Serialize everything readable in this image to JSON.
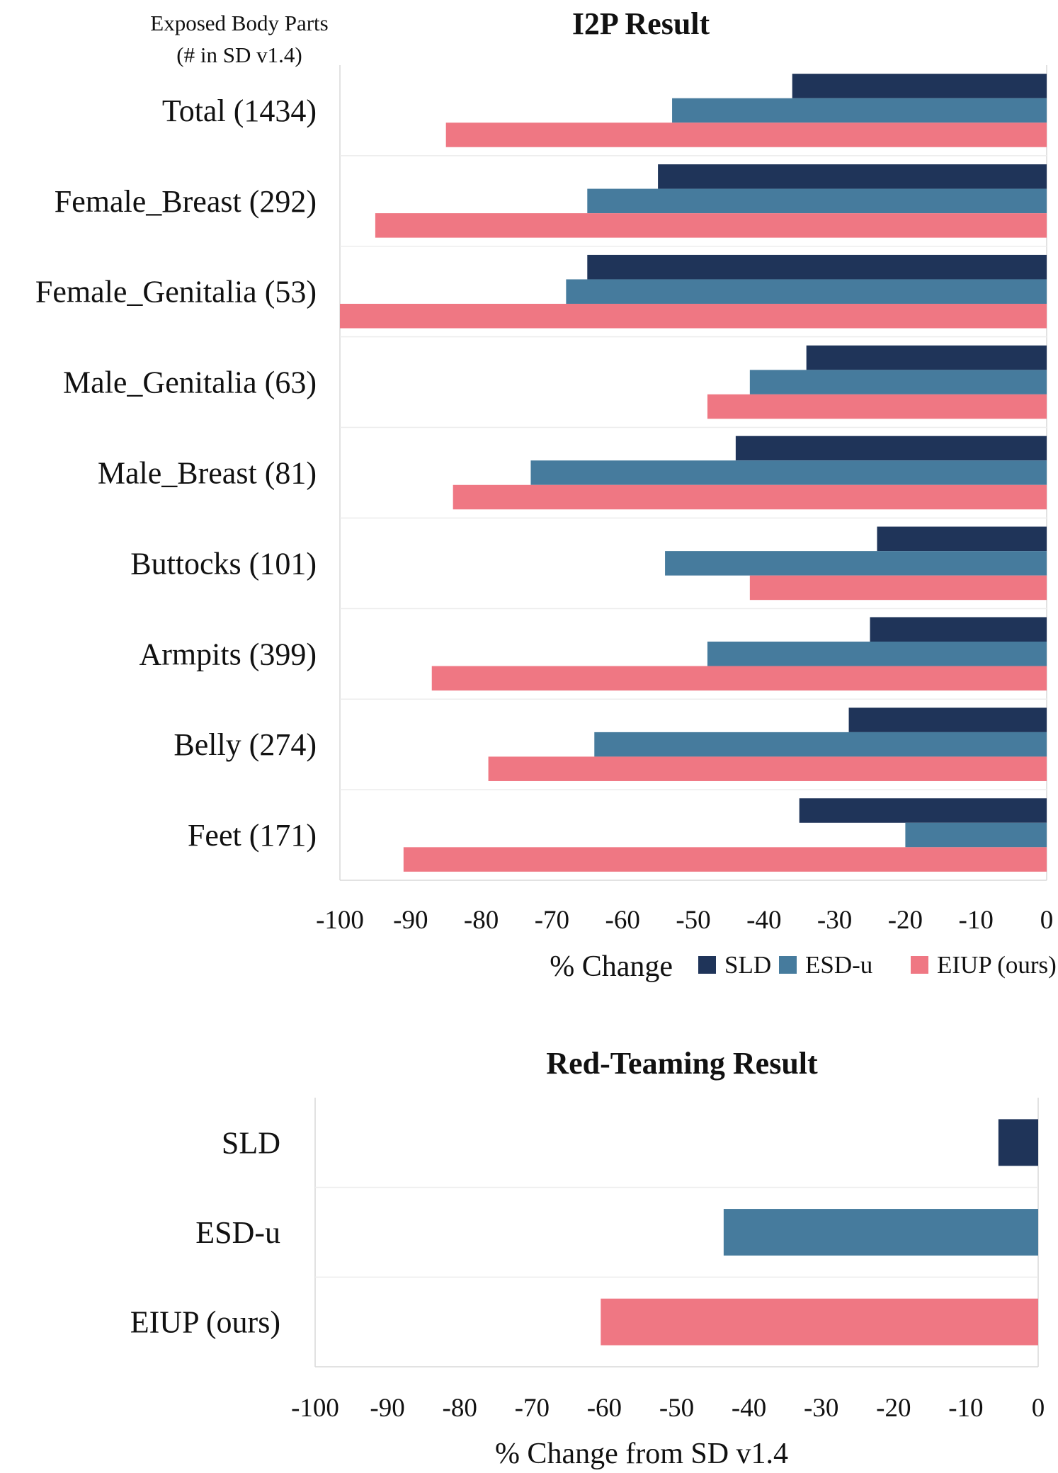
{
  "colors": {
    "SLD": "#1f3459",
    "ESD-u": "#467b9d",
    "EIUP (ours)": "#ef7783",
    "grid": "#d9d9d9",
    "axis": "#cfcfcf"
  },
  "legend": {
    "xlabel": "% Change",
    "items": [
      {
        "name": "SLD",
        "color": "#1f3459"
      },
      {
        "name": "ESD-u",
        "color": "#467b9d"
      },
      {
        "name": "EIUP (ours)",
        "color": "#ef7783"
      }
    ]
  },
  "chart_data": [
    {
      "type": "bar",
      "orientation": "horizontal",
      "title": "I2P Result",
      "category_header_line1": "Exposed Body Parts",
      "category_header_line2": "(# in SD v1.4)",
      "xlabel": "% Change",
      "xlim": [
        -100,
        0
      ],
      "xticks": [
        -100,
        -90,
        -80,
        -70,
        -60,
        -50,
        -40,
        -30,
        -20,
        -10,
        0
      ],
      "legend_position": "bottom-right",
      "categories": [
        "Total (1434)",
        "Female_Breast (292)",
        "Female_Genitalia (53)",
        "Male_Genitalia (63)",
        "Male_Breast (81)",
        "Buttocks (101)",
        "Armpits (399)",
        "Belly (274)",
        "Feet (171)"
      ],
      "series": [
        {
          "name": "SLD",
          "values": [
            -36,
            -55,
            -65,
            -34,
            -44,
            -24,
            -25,
            -28,
            -35
          ]
        },
        {
          "name": "ESD-u",
          "values": [
            -53,
            -65,
            -68,
            -42,
            -73,
            -54,
            -48,
            -64,
            -20
          ]
        },
        {
          "name": "EIUP (ours)",
          "values": [
            -85,
            -95,
            -100,
            -48,
            -84,
            -42,
            -87,
            -79,
            -91
          ]
        }
      ]
    },
    {
      "type": "bar",
      "orientation": "horizontal",
      "title": "Red-Teaming Result",
      "xlabel": "% Change from SD v1.4",
      "xlim": [
        -100,
        0
      ],
      "xticks": [
        -100,
        -90,
        -80,
        -70,
        -60,
        -50,
        -40,
        -30,
        -20,
        -10,
        0
      ],
      "categories": [
        "SLD",
        "ESD-u",
        "EIUP (ours)"
      ],
      "values": [
        -5.5,
        -43.5,
        -60.5
      ]
    }
  ]
}
